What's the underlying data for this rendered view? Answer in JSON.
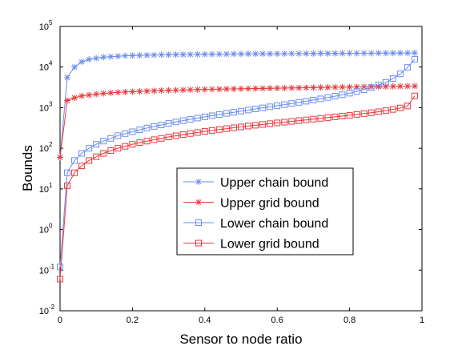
{
  "chart_data": {
    "type": "line",
    "title": "",
    "xlabel": "Sensor to node ratio",
    "ylabel": "Bounds",
    "xlim": [
      0,
      1
    ],
    "ylim_log10": [
      -2,
      5
    ],
    "yscale": "log",
    "grid": false,
    "legend_position": "center-right",
    "x_ticks": [
      "0",
      "0.2",
      "0.4",
      "0.6",
      "0.8",
      "1"
    ],
    "y_ticks": [
      {
        "base": "10",
        "exp": "-2"
      },
      {
        "base": "10",
        "exp": "-1"
      },
      {
        "base": "10",
        "exp": "0"
      },
      {
        "base": "10",
        "exp": "1"
      },
      {
        "base": "10",
        "exp": "2"
      },
      {
        "base": "10",
        "exp": "3"
      },
      {
        "base": "10",
        "exp": "4"
      },
      {
        "base": "10",
        "exp": "5"
      }
    ],
    "x": [
      0,
      0.02,
      0.04,
      0.06,
      0.08,
      0.1,
      0.12,
      0.14,
      0.16,
      0.18,
      0.2,
      0.22,
      0.24,
      0.26,
      0.28,
      0.3,
      0.32,
      0.34,
      0.36,
      0.38,
      0.4,
      0.42,
      0.44,
      0.46,
      0.48,
      0.5,
      0.52,
      0.54,
      0.56,
      0.58,
      0.6,
      0.62,
      0.64,
      0.66,
      0.68,
      0.7,
      0.72,
      0.74,
      0.76,
      0.78,
      0.8,
      0.82,
      0.84,
      0.86,
      0.88,
      0.9,
      0.92,
      0.94,
      0.96,
      0.98
    ],
    "series": [
      {
        "name": "Upper chain bound",
        "color": "#6b8cf0",
        "marker": "star",
        "values": [
          60,
          5500,
          10000,
          13500,
          15500,
          16500,
          17500,
          18000,
          18500,
          19000,
          19200,
          19400,
          19600,
          19800,
          20000,
          20100,
          20200,
          20300,
          20400,
          20500,
          20600,
          20700,
          20800,
          20900,
          21000,
          21000,
          21100,
          21100,
          21200,
          21200,
          21300,
          21300,
          21400,
          21400,
          21500,
          21500,
          21600,
          21600,
          21700,
          21700,
          21800,
          21800,
          21900,
          21900,
          22000,
          22000,
          22000,
          22100,
          22100,
          22200
        ]
      },
      {
        "name": "Upper grid bound",
        "color": "#e8383d",
        "marker": "star",
        "values": [
          60,
          1500,
          1750,
          1950,
          2050,
          2150,
          2250,
          2320,
          2380,
          2430,
          2480,
          2520,
          2560,
          2600,
          2640,
          2670,
          2700,
          2730,
          2760,
          2790,
          2820,
          2840,
          2860,
          2880,
          2900,
          2920,
          2940,
          2960,
          2980,
          3000,
          3020,
          3040,
          3060,
          3080,
          3100,
          3120,
          3140,
          3160,
          3180,
          3200,
          3220,
          3240,
          3260,
          3280,
          3300,
          3320,
          3340,
          3360,
          3380,
          3400
        ]
      },
      {
        "name": "Lower chain bound",
        "color": "#6b8cf0",
        "marker": "square",
        "values": [
          0.12,
          25,
          50,
          75,
          100,
          125,
          150,
          175,
          205,
          230,
          255,
          285,
          315,
          345,
          375,
          410,
          445,
          480,
          515,
          555,
          595,
          635,
          680,
          725,
          770,
          820,
          875,
          930,
          990,
          1050,
          1120,
          1190,
          1270,
          1350,
          1440,
          1540,
          1650,
          1780,
          1920,
          2080,
          2270,
          2500,
          2780,
          3120,
          3600,
          4200,
          5200,
          6800,
          9800,
          15500
        ]
      },
      {
        "name": "Lower grid bound",
        "color": "#e8383d",
        "marker": "square",
        "values": [
          0.06,
          12,
          25,
          37,
          50,
          62,
          75,
          88,
          100,
          112,
          125,
          138,
          150,
          163,
          176,
          190,
          203,
          217,
          231,
          245,
          260,
          275,
          290,
          305,
          320,
          336,
          352,
          369,
          386,
          404,
          422,
          441,
          460,
          480,
          500,
          522,
          545,
          569,
          594,
          621,
          650,
          681,
          715,
          752,
          795,
          845,
          905,
          985,
          1100,
          1950
        ]
      }
    ]
  }
}
